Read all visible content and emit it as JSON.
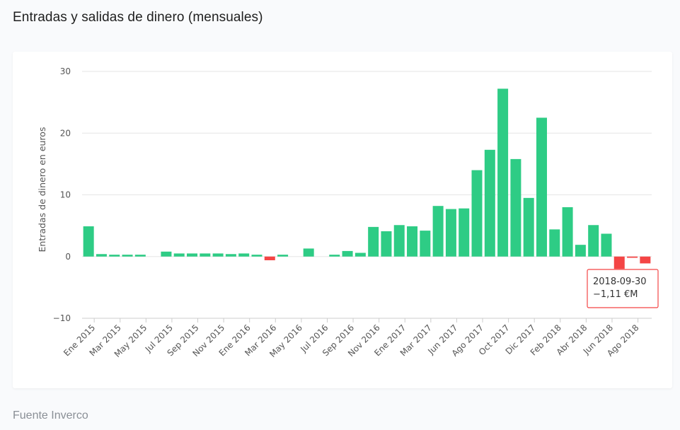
{
  "page": {
    "title": "Entradas y salidas de dinero (mensuales)",
    "source": "Fuente Inverco"
  },
  "colors": {
    "positive": "#2ecc85",
    "negative": "#f44545",
    "grid": "#e6e6e6",
    "axis_text": "#555555"
  },
  "tooltip": {
    "date": "2018-09-30",
    "value": "−1,11 €M"
  },
  "chart_data": {
    "type": "bar",
    "title": "",
    "ylabel": "Entradas de dinero en euros",
    "xlabel": "",
    "ylim": [
      -10,
      30
    ],
    "yticks": [
      30,
      20,
      10,
      0,
      -10
    ],
    "grid": true,
    "legend": "none",
    "tick_labels": [
      "Ene 2015",
      "Mar 2015",
      "May 2015",
      "Jul 2015",
      "Sep 2015",
      "Nov 2015",
      "Ene 2016",
      "Mar 2016",
      "May 2016",
      "Jul 2016",
      "Sep 2016",
      "Nov 2016",
      "Ene 2017",
      "Mar 2017",
      "Jun 2017",
      "Ago 2017",
      "Oct 2017",
      "Dic 2017",
      "Feb 2018",
      "Abr 2018",
      "Jun 2018",
      "Ago 2018"
    ],
    "values": [
      4.9,
      0.4,
      0.3,
      0.3,
      0.3,
      0.0,
      0.8,
      0.5,
      0.5,
      0.5,
      0.5,
      0.4,
      0.5,
      0.3,
      -0.6,
      0.3,
      0.0,
      1.3,
      0.0,
      0.3,
      0.9,
      0.6,
      4.8,
      4.1,
      5.1,
      4.9,
      4.2,
      8.2,
      7.7,
      7.8,
      14.0,
      17.3,
      27.2,
      15.8,
      9.5,
      22.5,
      4.4,
      8.0,
      1.9,
      5.1,
      3.7,
      -2.0,
      -0.2,
      -1.11
    ]
  }
}
